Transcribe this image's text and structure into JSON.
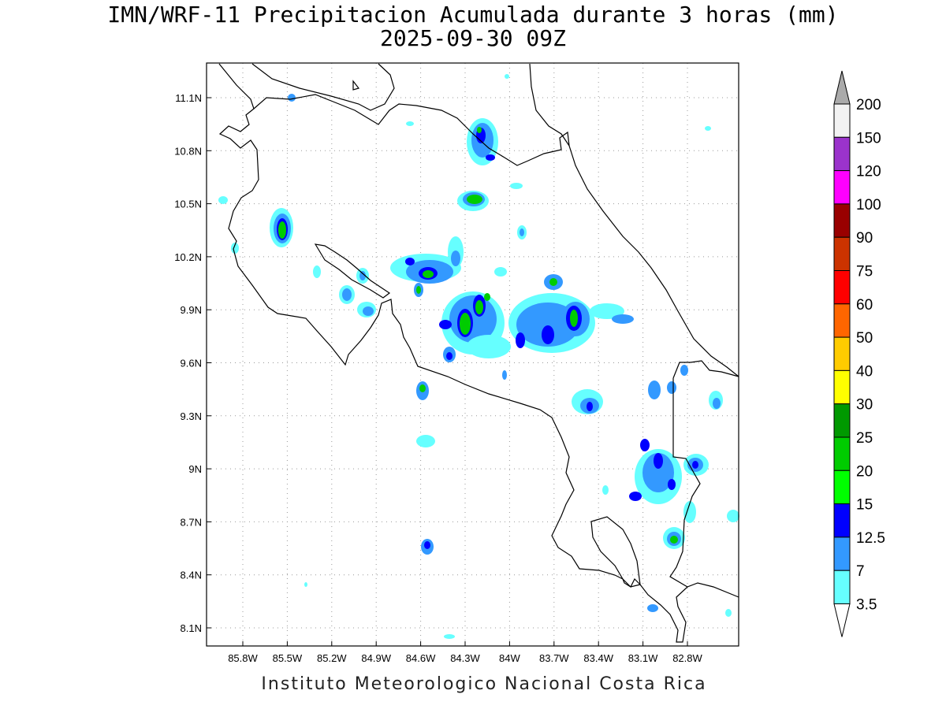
{
  "title_line1": "IMN/WRF-11 Precipitacion Acumulada durante 3 horas (mm)",
  "title_line2": "2025-09-30 09Z",
  "footer": "Instituto Meteorologico Nacional Costa Rica",
  "lon_ticks": [
    "85.8W",
    "85.5W",
    "85.2W",
    "84.9W",
    "84.6W",
    "84.3W",
    "84W",
    "83.7W",
    "83.4W",
    "83.1W",
    "82.8W"
  ],
  "lat_ticks": [
    "11.1N",
    "10.8N",
    "10.5N",
    "10.2N",
    "9.9N",
    "9.6N",
    "9.3N",
    "9N",
    "8.7N",
    "8.4N",
    "8.1N"
  ],
  "colorbar": {
    "levels": [
      "200",
      "150",
      "120",
      "100",
      "90",
      "75",
      "60",
      "50",
      "40",
      "30",
      "25",
      "20",
      "15",
      "12.5",
      "7",
      "3.5"
    ],
    "colors": [
      "#aaaaaa",
      "#f2f2f2",
      "#9b33cc",
      "#ff00ff",
      "#990000",
      "#cc3300",
      "#ff0000",
      "#ff6600",
      "#ffcc00",
      "#ffff00",
      "#009900",
      "#00cc00",
      "#00ff00",
      "#0000ff",
      "#3399ff",
      "#66ffff",
      "#ffffff"
    ]
  }
}
